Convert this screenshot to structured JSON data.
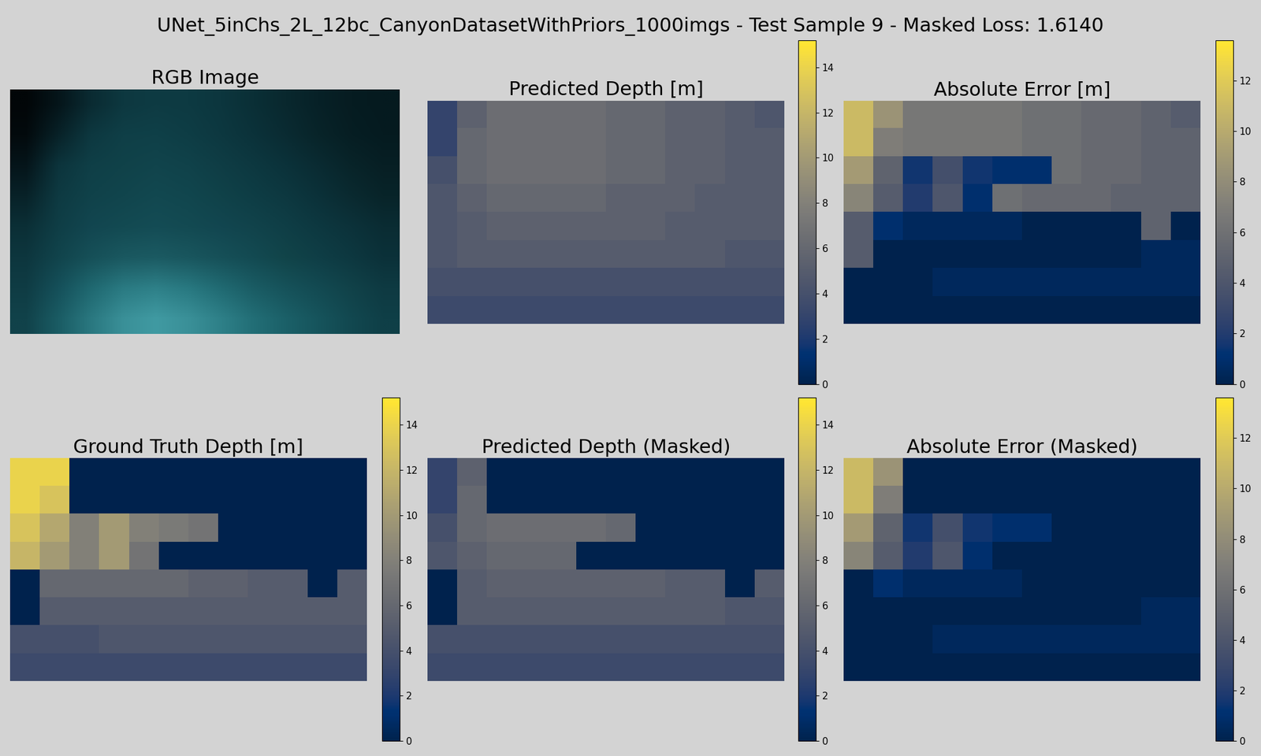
{
  "title": "UNet_5inChs_2L_12bc_CanyonDatasetWithPriors_1000imgs - Test Sample 9 - Masked Loss: 1.6140",
  "chart_data": [
    {
      "type": "image",
      "title": "RGB Image",
      "tick_labels": false,
      "cells": [
        [
          "#020608",
          "#05151a",
          "#0a2b32",
          "#0d3840",
          "#0e3b43",
          "#0d3a42",
          "#0c363e",
          "#0a2f36",
          "#09282e",
          "#072127",
          "#061c21",
          "#051a1f"
        ],
        [
          "#030a0d",
          "#082228",
          "#0d3840",
          "#0f3f47",
          "#0f4048",
          "#0e3d45",
          "#0d3840",
          "#0b323a",
          "#0a2b32",
          "#082429",
          "#061e23",
          "#051b20"
        ],
        [
          "#05151a",
          "#0c343c",
          "#0f3f47",
          "#104249",
          "#11444c",
          "#10424a",
          "#0f3d45",
          "#0d3840",
          "#0b323a",
          "#0a2b32",
          "#082429",
          "#071f24"
        ],
        [
          "#082228",
          "#0e3a42",
          "#10424a",
          "#11454d",
          "#124850",
          "#11464e",
          "#104249",
          "#0e3d45",
          "#0d3840",
          "#0b3139",
          "#0a2a30",
          "#082429"
        ],
        [
          "#0b2f36",
          "#0f3e46",
          "#124650",
          "#134a52",
          "#144c55",
          "#134a52",
          "#124650",
          "#11434b",
          "#0f3e46",
          "#0d3840",
          "#0c323a",
          "#0a2c33"
        ],
        [
          "#0d363e",
          "#11444c",
          "#165058",
          "#1a5860",
          "#1b5a62",
          "#19565e",
          "#165058",
          "#134a52",
          "#114449",
          "#0f3e46",
          "#0d3840",
          "#0b3139"
        ],
        [
          "#0f3c44",
          "#15505a",
          "#1f6870",
          "#2a7a82",
          "#2e8088",
          "#287880",
          "#206a72",
          "#1a5c64",
          "#16525a",
          "#134a52",
          "#114249",
          "#0e3a42"
        ],
        [
          "#11424a",
          "#1a5c64",
          "#2a7880",
          "#3a9098",
          "#409aa2",
          "#3a9098",
          "#2e8088",
          "#226e76",
          "#1b6068",
          "#16545c",
          "#124850",
          "#0f3f47"
        ]
      ]
    },
    {
      "type": "heatmap",
      "title": "Predicted Depth [m]",
      "tick_labels": false,
      "colorbar_range": [
        0,
        15.2
      ],
      "colorbar_ticks": [
        0,
        2,
        4,
        6,
        8,
        10,
        12,
        14
      ],
      "cells": [
        [
          3,
          5.5,
          6.5,
          6.5,
          6.5,
          6.5,
          6,
          6,
          5.5,
          5.5,
          5,
          4.5
        ],
        [
          3,
          6,
          6.5,
          6.5,
          6.5,
          6.5,
          6,
          6,
          5.5,
          5.5,
          5,
          5
        ],
        [
          4,
          6,
          6.5,
          6.5,
          6.5,
          6.5,
          6,
          6,
          5.5,
          5.5,
          5,
          5
        ],
        [
          4.5,
          5.5,
          6,
          6,
          6,
          6,
          5.5,
          5.5,
          5.5,
          5,
          5,
          5
        ],
        [
          4.5,
          5,
          5.5,
          5.5,
          5.5,
          5.5,
          5.5,
          5.5,
          5,
          5,
          5,
          5
        ],
        [
          4.5,
          5,
          5,
          5,
          5,
          5,
          5,
          5,
          5,
          5,
          4.5,
          4.5
        ],
        [
          4,
          4,
          4,
          4,
          4,
          4,
          4,
          4,
          4,
          4,
          4,
          4
        ],
        [
          3.5,
          3.5,
          3.5,
          3.5,
          3.5,
          3.5,
          3.5,
          3.5,
          3.5,
          3.5,
          3.5,
          3.5
        ]
      ]
    },
    {
      "type": "heatmap",
      "title": "Absolute Error [m]",
      "tick_labels": false,
      "colorbar_range": [
        0,
        13.6
      ],
      "colorbar_ticks": [
        0,
        2,
        4,
        6,
        8,
        10,
        12
      ],
      "cells": [
        [
          11,
          8.5,
          6.5,
          6.5,
          6.5,
          6.5,
          6,
          6,
          5.5,
          5.5,
          5,
          4.5
        ],
        [
          11,
          7,
          6.5,
          6.5,
          6.5,
          6.5,
          6,
          6,
          5.5,
          5.5,
          5,
          5
        ],
        [
          9,
          5,
          1.5,
          3.5,
          1.5,
          1,
          1,
          6,
          5.5,
          5.5,
          5,
          5
        ],
        [
          7.5,
          4.5,
          2,
          4,
          1,
          6,
          5.5,
          5.5,
          5.5,
          5,
          5,
          5
        ],
        [
          4.5,
          1,
          0.5,
          0.5,
          0.5,
          0.5,
          0,
          0,
          0,
          0,
          5,
          0
        ],
        [
          4.5,
          0,
          0,
          0,
          0,
          0,
          0,
          0,
          0,
          0,
          0.5,
          0.5
        ],
        [
          0,
          0,
          0,
          0.5,
          0.5,
          0.5,
          0.5,
          0.5,
          0.5,
          0.5,
          0.5,
          0.5
        ],
        [
          0,
          0,
          0,
          0,
          0,
          0,
          0,
          0,
          0,
          0,
          0,
          0
        ]
      ]
    },
    {
      "type": "heatmap",
      "title": "Ground Truth Depth [m]",
      "tick_labels": false,
      "colorbar_range": [
        0,
        15.2
      ],
      "colorbar_ticks": [
        0,
        2,
        4,
        6,
        8,
        10,
        12,
        14
      ],
      "cells": [
        [
          14,
          14,
          0,
          0,
          0,
          0,
          0,
          0,
          0,
          0,
          0,
          0
        ],
        [
          14,
          13,
          0,
          0,
          0,
          0,
          0,
          0,
          0,
          0,
          0,
          0
        ],
        [
          13,
          11,
          8,
          10,
          8,
          7.5,
          7,
          0,
          0,
          0,
          0,
          0
        ],
        [
          12,
          10,
          8,
          10,
          7,
          0,
          0,
          0,
          0,
          0,
          0,
          0
        ],
        [
          0,
          6,
          6,
          6,
          6,
          6,
          5.5,
          5.5,
          5,
          5,
          0,
          5
        ],
        [
          0,
          5,
          5,
          5,
          5,
          5,
          5,
          5,
          5,
          5,
          5,
          5
        ],
        [
          4,
          4,
          4,
          4.5,
          4.5,
          4.5,
          4.5,
          4.5,
          4.5,
          4.5,
          4.5,
          4.5
        ],
        [
          3.5,
          3.5,
          3.5,
          3.5,
          3.5,
          3.5,
          3.5,
          3.5,
          3.5,
          3.5,
          3.5,
          3.5
        ]
      ]
    },
    {
      "type": "heatmap",
      "title": "Predicted Depth (Masked)",
      "tick_labels": false,
      "colorbar_range": [
        0,
        15.2
      ],
      "colorbar_ticks": [
        0,
        2,
        4,
        6,
        8,
        10,
        12,
        14
      ],
      "cells": [
        [
          3,
          5.5,
          0,
          0,
          0,
          0,
          0,
          0,
          0,
          0,
          0,
          0
        ],
        [
          3,
          6,
          0,
          0,
          0,
          0,
          0,
          0,
          0,
          0,
          0,
          0
        ],
        [
          4,
          6,
          6.5,
          6.5,
          6.5,
          6.5,
          6,
          0,
          0,
          0,
          0,
          0
        ],
        [
          4.5,
          5.5,
          6,
          6,
          6,
          0,
          0,
          0,
          0,
          0,
          0,
          0
        ],
        [
          0,
          5,
          5.5,
          5.5,
          5.5,
          5.5,
          5.5,
          5.5,
          5,
          5,
          0,
          5
        ],
        [
          0,
          5,
          5,
          5,
          5,
          5,
          5,
          5,
          5,
          5,
          4.5,
          4.5
        ],
        [
          4,
          4,
          4,
          4,
          4,
          4,
          4,
          4,
          4,
          4,
          4,
          4
        ],
        [
          3.5,
          3.5,
          3.5,
          3.5,
          3.5,
          3.5,
          3.5,
          3.5,
          3.5,
          3.5,
          3.5,
          3.5
        ]
      ]
    },
    {
      "type": "heatmap",
      "title": "Absolute Error (Masked)",
      "tick_labels": false,
      "colorbar_range": [
        0,
        13.6
      ],
      "colorbar_ticks": [
        0,
        2,
        4,
        6,
        8,
        10,
        12
      ],
      "cells": [
        [
          11,
          8.5,
          0,
          0,
          0,
          0,
          0,
          0,
          0,
          0,
          0,
          0
        ],
        [
          11,
          7,
          0,
          0,
          0,
          0,
          0,
          0,
          0,
          0,
          0,
          0
        ],
        [
          9,
          5,
          1.5,
          3.5,
          1.5,
          1,
          1,
          0,
          0,
          0,
          0,
          0
        ],
        [
          7.5,
          4.5,
          2,
          4,
          1,
          0,
          0,
          0,
          0,
          0,
          0,
          0
        ],
        [
          0,
          1,
          0.5,
          0.5,
          0.5,
          0.5,
          0,
          0,
          0,
          0,
          0,
          0
        ],
        [
          0,
          0,
          0,
          0,
          0,
          0,
          0,
          0,
          0,
          0,
          0.5,
          0.5
        ],
        [
          0,
          0,
          0,
          0.5,
          0.5,
          0.5,
          0.5,
          0.5,
          0.5,
          0.5,
          0.5,
          0.5
        ],
        [
          0,
          0,
          0,
          0,
          0,
          0,
          0,
          0,
          0,
          0,
          0,
          0
        ]
      ]
    }
  ]
}
